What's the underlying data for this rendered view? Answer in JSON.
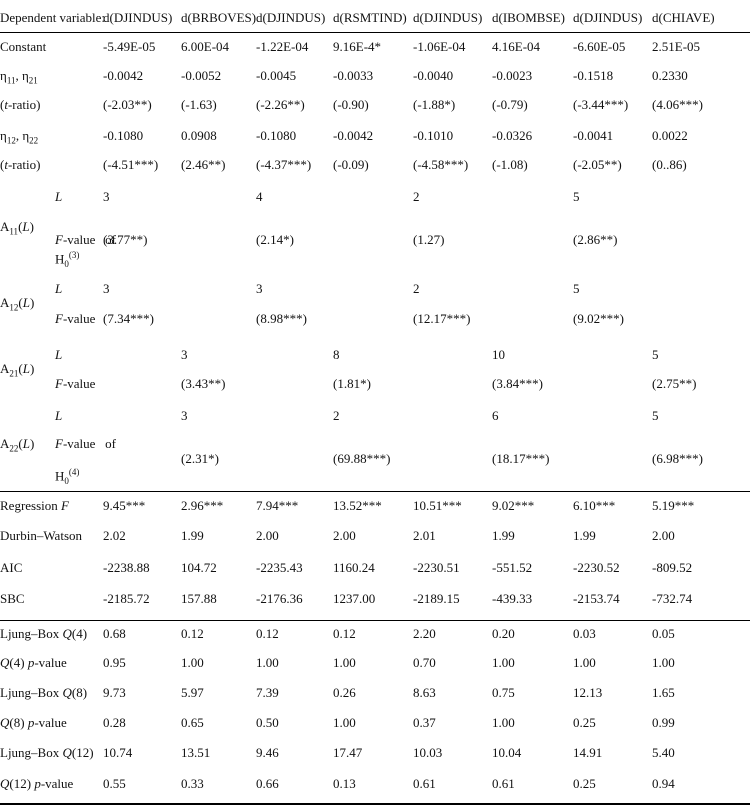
{
  "header": {
    "dep_var_label": "Dependent variable:",
    "columns": [
      "d(DJINDUS)",
      "d(BRBOVES)",
      "d(DJINDUS)",
      "d(RSMTIND)",
      "d(DJINDUS)",
      "d(IBOMBSE)",
      "d(DJINDUS)",
      "d(CHIAVE)"
    ]
  },
  "coef_rows": [
    {
      "label": "Constant",
      "values": [
        "-5.49E-05",
        "6.00E-04",
        "-1.22E-04",
        "9.16E-4*",
        "-1.06E-04",
        "4.16E-04",
        "-6.60E-05",
        "2.51E-05"
      ]
    },
    {
      "label": "η11, η21",
      "values": [
        "-0.0042",
        "-0.0052",
        "-0.0045",
        "-0.0033",
        "-0.0040",
        "-0.0023",
        "-0.1518",
        "0.2330"
      ]
    },
    {
      "label": "(t-ratio)",
      "values": [
        "(-2.03**)",
        "(-1.63)",
        "(-2.26**)",
        "(-0.90)",
        "(-1.88*)",
        "(-0.79)",
        "(-3.44***)",
        "(4.06***)"
      ]
    },
    {
      "label": "η12, η22",
      "values": [
        "-0.1080",
        "0.0908",
        "-0.1080",
        "-0.0042",
        "-0.1010",
        "-0.0326",
        "-0.0041",
        "0.0022"
      ]
    },
    {
      "label": "(t-ratio)",
      "values": [
        "(-4.51***)",
        "(2.46**)",
        "(-4.37***)",
        "(-0.09)",
        "(-4.58***)",
        "(-1.08)",
        "(-2.05**)",
        "(0..86)"
      ]
    }
  ],
  "lag_blocks": [
    {
      "name": "A11(L)",
      "L_label": "L",
      "F_label": "F-value of",
      "H0": "H0(3)",
      "L_values": [
        "3",
        "",
        "4",
        "",
        "2",
        "",
        "5",
        ""
      ],
      "F_values": [
        "(3.77**)",
        "",
        "(2.14*)",
        "",
        "(1.27)",
        "",
        "(2.86**)",
        ""
      ]
    },
    {
      "name": "A12(L)",
      "L_label": "L",
      "F_label": "F-value",
      "H0": "",
      "L_values": [
        "3",
        "",
        "3",
        "",
        "2",
        "",
        "5",
        ""
      ],
      "F_values": [
        "(7.34***)",
        "",
        "(8.98***)",
        "",
        "(12.17***)",
        "",
        "(9.02***)",
        ""
      ]
    },
    {
      "name": "A21(L)",
      "L_label": "L",
      "F_label": "F-value",
      "H0": "",
      "L_values": [
        "",
        "3",
        "",
        "8",
        "",
        "10",
        "",
        "5"
      ],
      "F_values": [
        "",
        "(3.43**)",
        "",
        "(1.81*)",
        "",
        "(3.84***)",
        "",
        "(2.75**)"
      ]
    },
    {
      "name": "A22(L)",
      "L_label": "L",
      "F_label": "F-value of",
      "H0": "H0(4)",
      "L_values": [
        "",
        "3",
        "",
        "2",
        "",
        "6",
        "",
        "5"
      ],
      "F_values": [
        "",
        "(2.31*)",
        "",
        "(69.88***)",
        "",
        "(18.17***)",
        "",
        "(6.98***)"
      ]
    }
  ],
  "fit_rows": [
    {
      "label": "Regression F",
      "values": [
        "9.45***",
        "2.96***",
        "7.94***",
        "13.52***",
        "10.51***",
        "9.02***",
        "6.10***",
        "5.19***"
      ]
    },
    {
      "label": "Durbin–Watson",
      "values": [
        "2.02",
        "1.99",
        "2.00",
        "2.00",
        "2.01",
        "1.99",
        "1.99",
        "2.00"
      ]
    },
    {
      "label": "AIC",
      "values": [
        "-2238.88",
        "104.72",
        "-2235.43",
        "1160.24",
        "-2230.51",
        "-551.52",
        "-2230.52",
        "-809.52"
      ]
    },
    {
      "label": "SBC",
      "values": [
        "-2185.72",
        "157.88",
        "-2176.36",
        "1237.00",
        "-2189.15",
        "-439.33",
        "-2153.74",
        "-732.74"
      ]
    }
  ],
  "diag_rows": [
    {
      "label": "Ljung–Box Q(4)",
      "values": [
        "0.68",
        "0.12",
        "0.12",
        "0.12",
        "2.20",
        "0.20",
        "0.03",
        "0.05"
      ]
    },
    {
      "label": "Q(4) p-value",
      "values": [
        "0.95",
        "1.00",
        "1.00",
        "1.00",
        "0.70",
        "1.00",
        "1.00",
        "1.00"
      ]
    },
    {
      "label": "Ljung–Box Q(8)",
      "values": [
        "9.73",
        "5.97",
        "7.39",
        "0.26",
        "8.63",
        "0.75",
        "12.13",
        "1.65"
      ]
    },
    {
      "label": "Q(8) p-value",
      "values": [
        "0.28",
        "0.65",
        "0.50",
        "1.00",
        "0.37",
        "1.00",
        "0.25",
        "0.99"
      ]
    },
    {
      "label": "Ljung–Box Q(12)",
      "values": [
        "10.74",
        "13.51",
        "9.46",
        "17.47",
        "10.03",
        "10.04",
        "14.91",
        "5.40"
      ]
    },
    {
      "label": "Q(12) p-value",
      "values": [
        "0.55",
        "0.33",
        "0.66",
        "0.13",
        "0.61",
        "0.61",
        "0.25",
        "0.94"
      ]
    }
  ]
}
